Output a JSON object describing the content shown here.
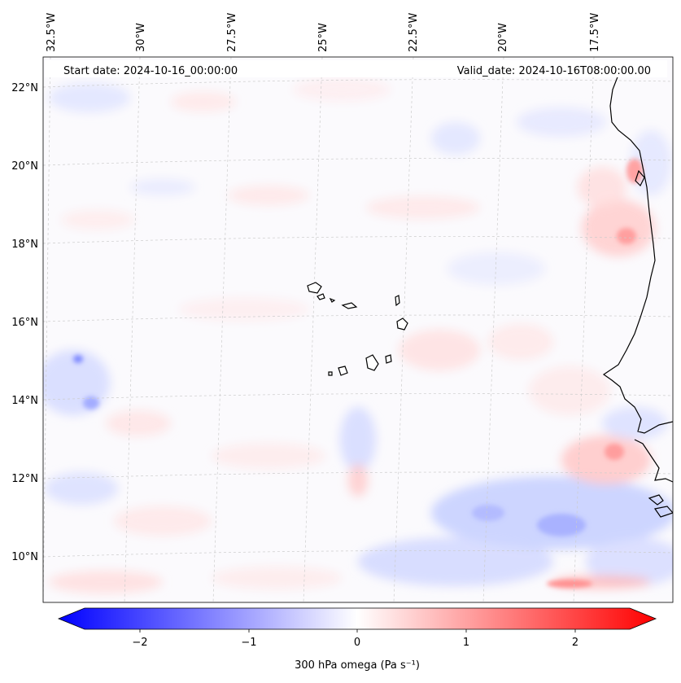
{
  "header": {
    "start_date": "Start date: 2024-10-16_00:00:00",
    "valid_date": "Valid_date: 2024-10-16T08:00:00.00"
  },
  "lon_labels": [
    "32.5°W",
    "30°W",
    "27.5°W",
    "25°W",
    "22.5°W",
    "20°W",
    "17.5°W"
  ],
  "lat_labels": [
    "22°N",
    "20°N",
    "18°N",
    "16°N",
    "14°N",
    "12°N",
    "10°N"
  ],
  "colorbar": {
    "label": "300 hPa omega (Pa s⁻¹)",
    "ticks": [
      "−2",
      "−1",
      "0",
      "1",
      "2"
    ],
    "min": -2.5,
    "max": 2.5,
    "colors": {
      "low": "#0000ff",
      "mid": "#ffffff",
      "high": "#ff0000"
    }
  },
  "map": {
    "variable": "300 hPa omega",
    "lon_range": [
      -33,
      -15.5
    ],
    "lat_range": [
      9,
      22.5
    ]
  }
}
